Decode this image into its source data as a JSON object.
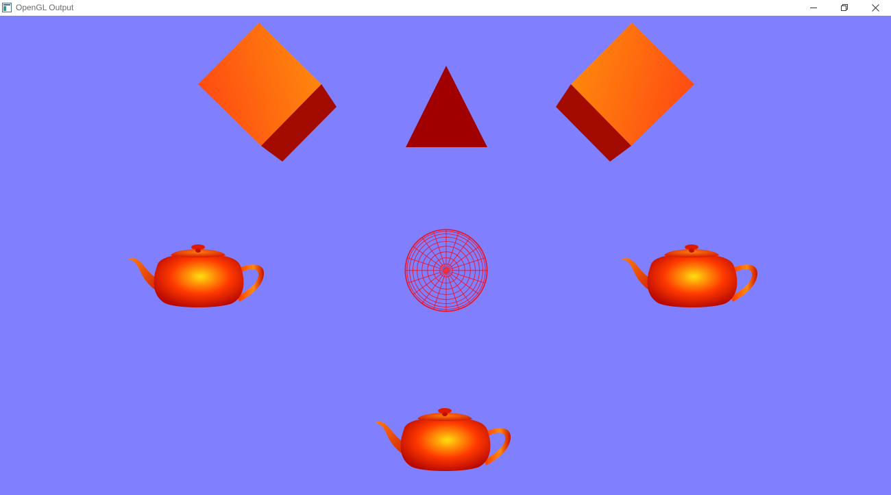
{
  "window": {
    "title": "OpenGL Output",
    "controls": {
      "minimize_icon": "minimize-icon",
      "restore_icon": "restore-icon",
      "close_icon": "close-icon"
    }
  },
  "scene": {
    "background_color": "#8080ff",
    "objects": [
      {
        "kind": "cube",
        "name": "cube-left",
        "color": "#ff7a10"
      },
      {
        "kind": "triangle",
        "name": "triangle",
        "color": "#a00000"
      },
      {
        "kind": "cube",
        "name": "cube-right",
        "color": "#ff7a10"
      },
      {
        "kind": "teapot",
        "name": "teapot-left",
        "color": "#ff2a00"
      },
      {
        "kind": "wire-sphere",
        "name": "wire-sphere",
        "color": "#ff1a1a"
      },
      {
        "kind": "teapot",
        "name": "teapot-right",
        "color": "#ff2a00"
      },
      {
        "kind": "teapot",
        "name": "teapot-bottom",
        "color": "#ff2a00"
      }
    ]
  }
}
